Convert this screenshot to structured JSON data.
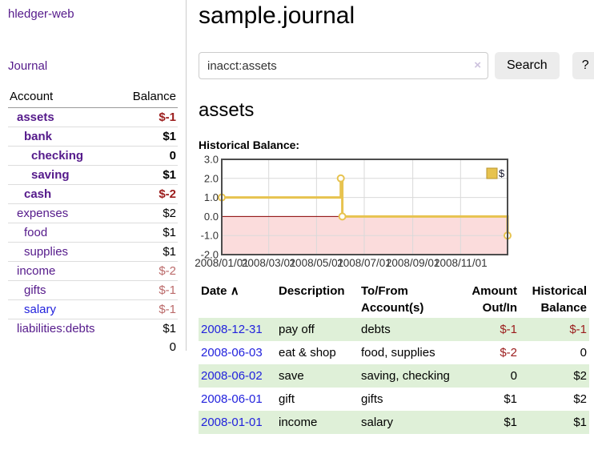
{
  "colors": {
    "accent_purple": "#551A8B",
    "link_blue": "#2222DD",
    "negative_strong": "#9B1C1C",
    "negative_soft": "#BB6A6A",
    "row_green": "#DFF0D8",
    "chart_gold": "#E7C34F",
    "chart_negative_pink": "#FBDCDC",
    "chart_zero_line": "#8B0000"
  },
  "sidebar": {
    "brand": "hledger-web",
    "journal_link": "Journal",
    "accounts_table": {
      "col_account": "Account",
      "col_balance": "Balance",
      "rows": [
        {
          "account": "assets",
          "balance": "$-1",
          "indent": 1,
          "bold": true,
          "balance_class": "neg-strong"
        },
        {
          "account": "bank",
          "balance": "$1",
          "indent": 2,
          "bold": true,
          "balance_class": ""
        },
        {
          "account": "checking",
          "balance": "0",
          "indent": 3,
          "bold": true,
          "balance_class": ""
        },
        {
          "account": "saving",
          "balance": "$1",
          "indent": 3,
          "bold": true,
          "balance_class": ""
        },
        {
          "account": "cash",
          "balance": "$-2",
          "indent": 2,
          "bold": true,
          "balance_class": "neg-strong"
        },
        {
          "account": "expenses",
          "balance": "$2",
          "indent": 1,
          "bold": false,
          "balance_class": ""
        },
        {
          "account": "food",
          "balance": "$1",
          "indent": 2,
          "bold": false,
          "balance_class": ""
        },
        {
          "account": "supplies",
          "balance": "$1",
          "indent": 2,
          "bold": false,
          "balance_class": ""
        },
        {
          "account": "income",
          "balance": "$-2",
          "indent": 1,
          "bold": false,
          "balance_class": "neg-soft"
        },
        {
          "account": "gifts",
          "balance": "$-1",
          "indent": 2,
          "bold": false,
          "balance_class": "neg-soft"
        },
        {
          "account": "salary",
          "balance": "$-1",
          "indent": 2,
          "bold": false,
          "balance_class": "neg-soft",
          "link_blue": true
        },
        {
          "account": "liabilities:debts",
          "balance": "$1",
          "indent": 1,
          "bold": false,
          "balance_class": ""
        }
      ],
      "total": "0"
    }
  },
  "main": {
    "title": "sample.journal",
    "search": {
      "value": "inacct:assets",
      "clear_icon": "×",
      "search_button": "Search",
      "help_button": "?"
    },
    "account_heading": "assets",
    "chart_label": "Historical Balance:"
  },
  "chart_data": {
    "type": "line",
    "title": "Historical Balance:",
    "series": [
      {
        "name": "$",
        "step": true,
        "points": [
          [
            "2008-01-01",
            1
          ],
          [
            "2008-06-01",
            2
          ],
          [
            "2008-06-03",
            0
          ],
          [
            "2008-12-31",
            -1
          ]
        ]
      }
    ],
    "x_range": [
      "2008-01-01",
      "2008-12-31"
    ],
    "x_ticks": [
      "2008/01/01",
      "2008/03/01",
      "2008/05/01",
      "2008/07/01",
      "2008/09/01",
      "2008/11/01"
    ],
    "y_ticks": [
      "3.0",
      "2.0",
      "1.0",
      "0.0",
      "-1.0",
      "-2.0"
    ],
    "ylim": [
      -2,
      3
    ],
    "grid": true,
    "legend_position": "top-right"
  },
  "register": {
    "headers": {
      "date": "Date",
      "description": "Description",
      "accounts": "To/From Account(s)",
      "amount": "Amount Out/In",
      "balance": "Historical Balance"
    },
    "sort_icon": "∧",
    "rows": [
      {
        "date": "2008-12-31",
        "description": "pay off",
        "accounts": "debts",
        "amount": "$-1",
        "balance": "$-1",
        "amount_neg": true,
        "balance_neg": true,
        "shaded": true
      },
      {
        "date": "2008-06-03",
        "description": "eat & shop",
        "accounts": "food, supplies",
        "amount": "$-2",
        "balance": "0",
        "amount_neg": true,
        "balance_neg": false,
        "shaded": false
      },
      {
        "date": "2008-06-02",
        "description": "save",
        "accounts": "saving, checking",
        "amount": "0",
        "balance": "$2",
        "amount_neg": false,
        "balance_neg": false,
        "shaded": true
      },
      {
        "date": "2008-06-01",
        "description": "gift",
        "accounts": "gifts",
        "amount": "$1",
        "balance": "$2",
        "amount_neg": false,
        "balance_neg": false,
        "shaded": false
      },
      {
        "date": "2008-01-01",
        "description": "income",
        "accounts": "salary",
        "amount": "$1",
        "balance": "$1",
        "amount_neg": false,
        "balance_neg": false,
        "shaded": true
      }
    ]
  }
}
